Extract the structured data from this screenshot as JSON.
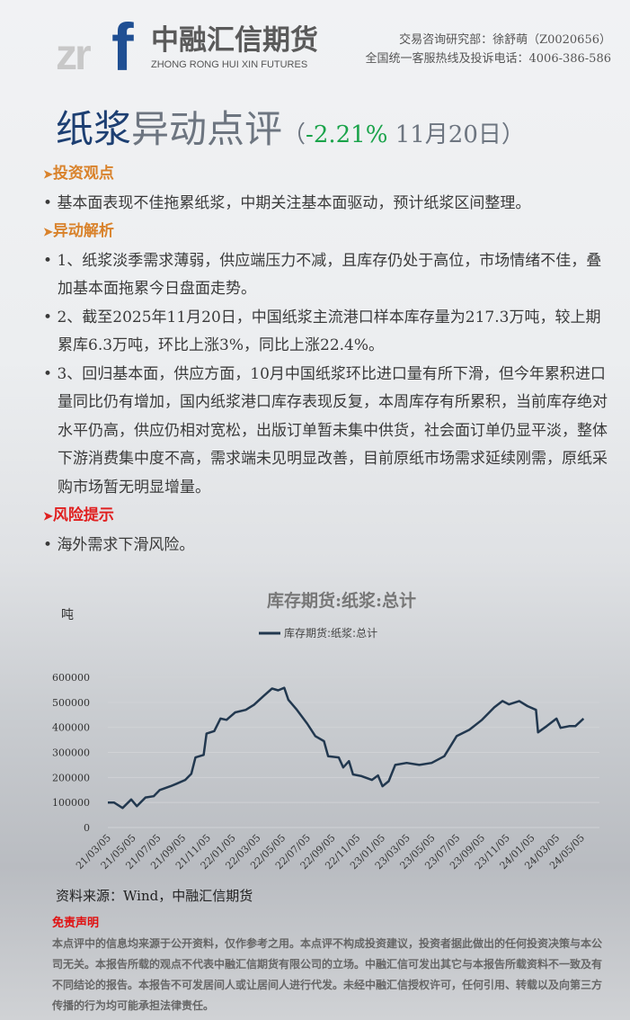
{
  "header": {
    "logo_mark": "zrf",
    "logo_cn": "中融汇信期货",
    "logo_en": "ZHONG RONG HUI XIN FUTURES",
    "contact_line1": "交易咨询研究部：徐舒萌（Z0020656）",
    "contact_line2": "全国统一客服热线及投诉电话：4006-386-586"
  },
  "title": {
    "part1": "纸浆",
    "part2": "异动点评",
    "open": "（",
    "change": "-2.21%",
    "date": " 11月20日",
    "close": "）"
  },
  "colors": {
    "accent_blue": "#1d3f72",
    "heading_orange": "#d9822b",
    "heading_red": "#e02020",
    "change_green": "#1aa34a",
    "line": "#22384f"
  },
  "sections": [
    {
      "heading": "投资观点",
      "items": [
        "基本面表现不佳拖累纸浆，中期关注基本面驱动，预计纸浆区间整理。"
      ]
    },
    {
      "heading": "异动解析",
      "items": [
        "1、纸浆淡季需求薄弱，供应端压力不减，且库存仍处于高位，市场情绪不佳，叠加基本面拖累今日盘面走势。",
        "2、截至2025年11月20日，中国纸浆主流港口样本库存量为217.3万吨，较上期累库6.3万吨，环比上涨3%，同比上涨22.4%。",
        "3、回归基本面，供应方面，10月中国纸浆环比进口量有所下滑，但今年累积进口量同比仍有增加，国内纸浆港口库存表现反复，本周库存有所累积，当前库存绝对水平仍高，供应仍相对宽松，出版订单暂未集中供货，社会面订单仍显平淡，整体下游消费集中度不高，需求端未见明显改善，目前原纸市场需求延续刚需，原纸采购市场暂无明显增量。"
      ]
    },
    {
      "heading": "风险提示",
      "items": [
        "海外需求下滑风险。"
      ]
    }
  ],
  "chart_data": {
    "type": "line",
    "title": "库存期货:纸浆:总计",
    "ylabel": "吨",
    "legend": "库存期货:纸浆:总计",
    "legend_position": "top",
    "grid": true,
    "ylim": [
      0,
      600000
    ],
    "yticks": [
      "0",
      "100000",
      "200000",
      "300000",
      "400000",
      "500000",
      "600000"
    ],
    "xticks": [
      "21/03/05",
      "21/05/05",
      "21/07/05",
      "21/09/05",
      "21/11/05",
      "22/01/05",
      "22/03/05",
      "22/05/05",
      "22/07/05",
      "22/09/05",
      "22/11/05",
      "23/01/05",
      "23/03/05",
      "23/05/05",
      "23/07/05",
      "23/09/05",
      "23/11/05",
      "24/01/05",
      "24/03/05",
      "24/05/05"
    ],
    "series": [
      {
        "name": "库存期货:纸浆:总计",
        "points": [
          [
            "2021-03-05",
            100000
          ],
          [
            "2021-03-20",
            100000
          ],
          [
            "2021-04-10",
            78000
          ],
          [
            "2021-05-01",
            112000
          ],
          [
            "2021-05-15",
            85000
          ],
          [
            "2021-06-05",
            120000
          ],
          [
            "2021-06-25",
            125000
          ],
          [
            "2021-07-10",
            150000
          ],
          [
            "2021-08-05",
            165000
          ],
          [
            "2021-08-20",
            175000
          ],
          [
            "2021-09-10",
            190000
          ],
          [
            "2021-09-25",
            215000
          ],
          [
            "2021-10-05",
            280000
          ],
          [
            "2021-10-25",
            290000
          ],
          [
            "2021-11-01",
            375000
          ],
          [
            "2021-11-20",
            385000
          ],
          [
            "2021-12-05",
            435000
          ],
          [
            "2021-12-20",
            430000
          ],
          [
            "2022-01-10",
            460000
          ],
          [
            "2022-02-05",
            470000
          ],
          [
            "2022-02-25",
            490000
          ],
          [
            "2022-03-20",
            525000
          ],
          [
            "2022-04-10",
            555000
          ],
          [
            "2022-04-25",
            548000
          ],
          [
            "2022-05-10",
            558000
          ],
          [
            "2022-05-20",
            510000
          ],
          [
            "2022-06-10",
            470000
          ],
          [
            "2022-07-05",
            415000
          ],
          [
            "2022-07-25",
            365000
          ],
          [
            "2022-08-15",
            345000
          ],
          [
            "2022-08-25",
            285000
          ],
          [
            "2022-09-20",
            280000
          ],
          [
            "2022-10-01",
            240000
          ],
          [
            "2022-10-15",
            265000
          ],
          [
            "2022-10-25",
            212000
          ],
          [
            "2022-11-15",
            205000
          ],
          [
            "2022-12-10",
            190000
          ],
          [
            "2022-12-25",
            208000
          ],
          [
            "2023-01-05",
            165000
          ],
          [
            "2023-01-20",
            185000
          ],
          [
            "2023-02-05",
            250000
          ],
          [
            "2023-03-05",
            258000
          ],
          [
            "2023-04-05",
            250000
          ],
          [
            "2023-05-05",
            258000
          ],
          [
            "2023-06-05",
            285000
          ],
          [
            "2023-07-05",
            365000
          ],
          [
            "2023-08-05",
            390000
          ],
          [
            "2023-09-05",
            430000
          ],
          [
            "2023-10-05",
            480000
          ],
          [
            "2023-10-25",
            505000
          ],
          [
            "2023-11-10",
            492000
          ],
          [
            "2023-12-05",
            505000
          ],
          [
            "2023-12-25",
            485000
          ],
          [
            "2024-01-15",
            470000
          ],
          [
            "2024-01-20",
            380000
          ],
          [
            "2024-02-10",
            405000
          ],
          [
            "2024-03-05",
            435000
          ],
          [
            "2024-03-15",
            398000
          ],
          [
            "2024-04-05",
            405000
          ],
          [
            "2024-04-20",
            405000
          ],
          [
            "2024-05-10",
            435000
          ]
        ]
      }
    ]
  },
  "source": "资料来源：Wind，中融汇信期货",
  "disclaimer": {
    "heading": "免责声明",
    "text": "本点评中的信息均来源于公开资料，仅作参考之用。本点评不构成投资建议，投资者据此做出的任何投资决策与本公司无关。本报告所载的观点不代表中融汇信期货有限公司的立场。中融汇信可发出其它与本报告所载资料不一致及有不同结论的报告。本报告不可发居间人或让居间人进行代发。未经中融汇信授权许可，任何引用、转载以及向第三方传播的行为均可能承担法律责任。"
  }
}
